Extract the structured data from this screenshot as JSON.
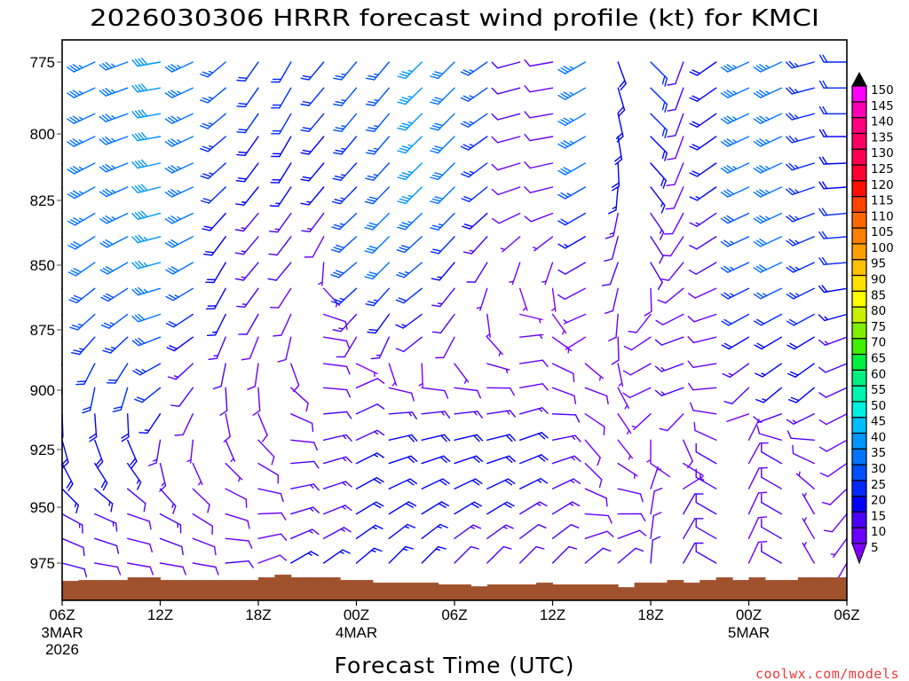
{
  "chart_data": {
    "type": "scatter",
    "title": "2026030306 HRRR forecast wind profile (kt) for KMCI",
    "xlabel": "Forecast Time (UTC)",
    "ylabel": "",
    "xlim": [
      0,
      48
    ],
    "ylim": [
      767.3,
      991.7
    ],
    "y_ticks": [
      775,
      800,
      825,
      850,
      875,
      900,
      925,
      950,
      975
    ],
    "x_ticks": [
      {
        "hour": 0,
        "label": "06Z",
        "sub": [
          "3MAR",
          "2026"
        ]
      },
      {
        "hour": 6,
        "label": "12Z",
        "sub": []
      },
      {
        "hour": 12,
        "label": "18Z",
        "sub": []
      },
      {
        "hour": 18,
        "label": "00Z",
        "sub": [
          "4MAR"
        ]
      },
      {
        "hour": 24,
        "label": "06Z",
        "sub": []
      },
      {
        "hour": 30,
        "label": "12Z",
        "sub": []
      },
      {
        "hour": 36,
        "label": "18Z",
        "sub": []
      },
      {
        "hour": 42,
        "label": "00Z",
        "sub": [
          "5MAR"
        ]
      },
      {
        "hour": 48,
        "label": "06Z",
        "sub": []
      }
    ],
    "key_levels_hPa": [
      775,
      800,
      825,
      850,
      875,
      900,
      925,
      950,
      975
    ],
    "plot_levels_hPa": [
      775,
      784,
      793,
      801,
      811,
      820,
      830,
      839,
      849,
      859,
      869,
      878,
      889,
      899,
      910,
      921,
      931,
      942,
      953,
      964,
      975
    ],
    "wind": [
      {
        "hour": 0,
        "dir": [
          245,
          245,
          240,
          235,
          225,
          190,
          160,
          120,
          105
        ],
        "spd": [
          35,
          35,
          35,
          30,
          25,
          20,
          20,
          15,
          10
        ]
      },
      {
        "hour": 2,
        "dir": [
          245,
          245,
          240,
          235,
          225,
          190,
          155,
          115,
          100
        ],
        "spd": [
          35,
          35,
          35,
          30,
          25,
          20,
          20,
          15,
          10
        ]
      },
      {
        "hour": 4,
        "dir": [
          250,
          250,
          245,
          240,
          230,
          195,
          150,
          110,
          100
        ],
        "spd": [
          35,
          35,
          35,
          30,
          25,
          20,
          20,
          10,
          10
        ]
      },
      {
        "hour": 6,
        "dir": [
          260,
          260,
          255,
          255,
          250,
          230,
          180,
          120,
          100
        ],
        "spd": [
          40,
          40,
          40,
          35,
          30,
          20,
          15,
          15,
          10
        ]
      },
      {
        "hour": 8,
        "dir": [
          245,
          245,
          245,
          240,
          235,
          215,
          175,
          125,
          100
        ],
        "spd": [
          35,
          35,
          35,
          30,
          20,
          10,
          5,
          10,
          10
        ]
      },
      {
        "hour": 10,
        "dir": [
          230,
          230,
          225,
          210,
          205,
          175,
          150,
          110,
          85
        ],
        "spd": [
          25,
          25,
          20,
          20,
          15,
          10,
          5,
          10,
          10
        ]
      },
      {
        "hour": 12,
        "dir": [
          215,
          215,
          220,
          220,
          205,
          175,
          130,
          90,
          70
        ],
        "spd": [
          20,
          20,
          15,
          15,
          10,
          10,
          10,
          10,
          10
        ]
      },
      {
        "hour": 14,
        "dir": [
          210,
          210,
          215,
          220,
          200,
          130,
          90,
          75,
          60
        ],
        "spd": [
          20,
          20,
          15,
          10,
          10,
          10,
          10,
          15,
          15
        ]
      },
      {
        "hour": 16,
        "dir": [
          220,
          220,
          220,
          180,
          100,
          95,
          75,
          70,
          55
        ],
        "spd": [
          20,
          20,
          15,
          5,
          10,
          10,
          15,
          15,
          15
        ]
      },
      {
        "hour": 18,
        "dir": [
          220,
          220,
          225,
          230,
          215,
          65,
          65,
          60,
          50
        ],
        "spd": [
          25,
          25,
          25,
          30,
          10,
          10,
          15,
          20,
          15
        ]
      },
      {
        "hour": 20,
        "dir": [
          220,
          220,
          225,
          225,
          210,
          100,
          75,
          60,
          45
        ],
        "spd": [
          25,
          25,
          30,
          30,
          15,
          10,
          20,
          20,
          15
        ]
      },
      {
        "hour": 22,
        "dir": [
          225,
          225,
          225,
          230,
          235,
          95,
          75,
          60,
          45
        ],
        "spd": [
          35,
          35,
          35,
          25,
          15,
          10,
          20,
          20,
          15
        ]
      },
      {
        "hour": 24,
        "dir": [
          225,
          225,
          225,
          220,
          215,
          95,
          75,
          60,
          45
        ],
        "spd": [
          30,
          30,
          30,
          15,
          10,
          10,
          20,
          20,
          10
        ]
      },
      {
        "hour": 26,
        "dir": [
          235,
          235,
          230,
          210,
          150,
          90,
          75,
          60,
          45
        ],
        "spd": [
          25,
          25,
          20,
          10,
          5,
          10,
          20,
          20,
          10
        ]
      },
      {
        "hour": 28,
        "dir": [
          255,
          255,
          250,
          195,
          85,
          80,
          70,
          60,
          45
        ],
        "spd": [
          10,
          10,
          10,
          5,
          5,
          10,
          20,
          15,
          10
        ]
      },
      {
        "hour": 30,
        "dir": [
          260,
          260,
          255,
          195,
          130,
          110,
          75,
          60,
          45
        ],
        "spd": [
          10,
          10,
          10,
          5,
          5,
          10,
          15,
          15,
          10
        ]
      },
      {
        "hour": 32,
        "dir": [
          240,
          240,
          240,
          240,
          250,
          110,
          145,
          100,
          50
        ],
        "spd": [
          35,
          35,
          25,
          10,
          5,
          10,
          10,
          10,
          10
        ]
      },
      {
        "hour": 34,
        "dir": [
          160,
          170,
          190,
          200,
          180,
          150,
          140,
          95,
          50
        ],
        "spd": [
          20,
          20,
          15,
          10,
          10,
          5,
          5,
          10,
          10
        ]
      },
      {
        "hour": 36,
        "dir": [
          135,
          135,
          145,
          150,
          235,
          245,
          160,
          10,
          5
        ],
        "spd": [
          20,
          20,
          15,
          10,
          10,
          10,
          5,
          10,
          10
        ]
      },
      {
        "hour": 38,
        "dir": [
          200,
          200,
          205,
          220,
          250,
          250,
          140,
          30,
          30
        ],
        "spd": [
          10,
          10,
          10,
          10,
          10,
          15,
          10,
          10,
          10
        ]
      },
      {
        "hour": 40,
        "dir": [
          235,
          235,
          235,
          240,
          255,
          265,
          300,
          300,
          300
        ],
        "spd": [
          20,
          20,
          15,
          10,
          10,
          10,
          10,
          10,
          10
        ]
      },
      {
        "hour": 42,
        "dir": [
          245,
          245,
          245,
          245,
          240,
          225,
          30,
          25,
          25
        ],
        "spd": [
          35,
          35,
          30,
          25,
          20,
          10,
          10,
          10,
          10
        ]
      },
      {
        "hour": 44,
        "dir": [
          245,
          245,
          245,
          245,
          240,
          230,
          300,
          300,
          300
        ],
        "spd": [
          35,
          35,
          35,
          30,
          20,
          15,
          10,
          10,
          10
        ]
      },
      {
        "hour": 46,
        "dir": [
          255,
          255,
          250,
          245,
          240,
          230,
          290,
          330,
          330
        ],
        "spd": [
          25,
          25,
          25,
          25,
          20,
          20,
          10,
          5,
          5
        ]
      },
      {
        "hour": 48,
        "dir": [
          270,
          270,
          265,
          265,
          250,
          245,
          240,
          220,
          210
        ],
        "spd": [
          20,
          20,
          20,
          20,
          15,
          10,
          10,
          10,
          5
        ]
      }
    ],
    "surface_pressure_hPa": [
      983.0,
      982.6,
      982.6,
      982.6,
      981.4,
      981.4,
      982.6,
      982.6,
      982.6,
      982.6,
      982.6,
      982.6,
      981.4,
      980.2,
      981.4,
      981.4,
      981.4,
      982.6,
      982.6,
      983.8,
      983.8,
      983.8,
      983.8,
      984.6,
      984.6,
      985.4,
      984.6,
      984.6,
      984.6,
      983.8,
      984.6,
      984.6,
      984.6,
      984.6,
      985.8,
      983.8,
      983.8,
      982.6,
      983.8,
      982.6,
      981.4,
      982.6,
      981.4,
      982.6,
      982.6,
      981.4,
      981.4,
      981.4
    ],
    "colorbar": {
      "labels": [
        5,
        10,
        15,
        20,
        25,
        30,
        35,
        40,
        45,
        50,
        55,
        60,
        65,
        70,
        75,
        80,
        85,
        90,
        95,
        100,
        105,
        110,
        115,
        120,
        125,
        130,
        135,
        140,
        145,
        150
      ],
      "colors": [
        "#6a00ff",
        "#4d00ff",
        "#0000ff",
        "#0028ff",
        "#0050ff",
        "#0073ff",
        "#0096ff",
        "#00beff",
        "#00f0e0",
        "#00f5b0",
        "#00f080",
        "#00f040",
        "#40f000",
        "#80f000",
        "#c8f000",
        "#ffff00",
        "#ffe000",
        "#ffc000",
        "#ffa000",
        "#ff8000",
        "#ff6800",
        "#ff4400",
        "#ff1000",
        "#ff0030",
        "#ff0050",
        "#ff0064",
        "#ff0080",
        "#ff00b8",
        "#ff00ff"
      ],
      "under_color": "#8000ff",
      "over_color": "#000000"
    },
    "surface_color": "#a0522d"
  },
  "watermark": "coolwx.com/models"
}
